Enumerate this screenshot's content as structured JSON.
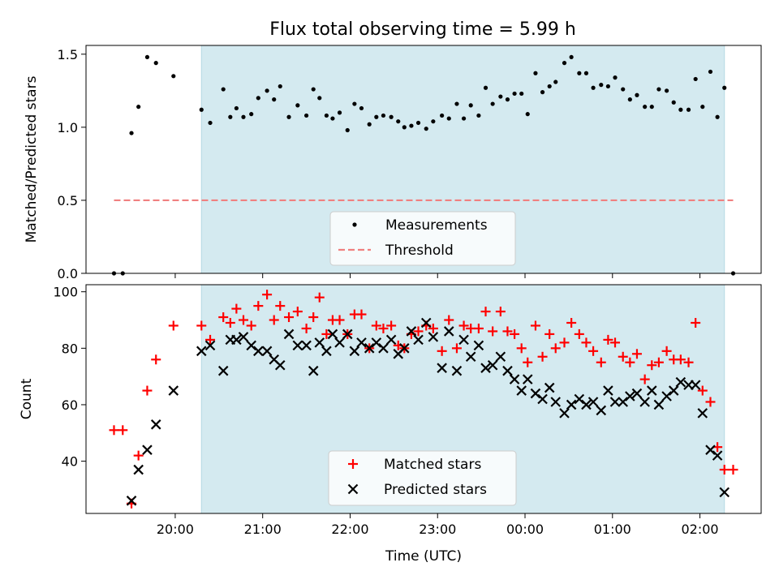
{
  "title": "Flux total observing time = 5.99 h",
  "chart_data": [
    {
      "type": "scatter",
      "ylabel": "Matched/Predicted stars",
      "xlabel": "",
      "x_units": "hours UTC, 24 = midnight",
      "xlim": [
        18.98,
        26.7
      ],
      "ylim": [
        0,
        1.56
      ],
      "yticks": [
        0.0,
        0.5,
        1.0,
        1.5
      ],
      "ytick_labels": [
        "0.0",
        "0.5",
        "1.0",
        "1.5"
      ],
      "shaded_x_range": [
        20.3,
        26.28
      ],
      "shade_color": "#d4eaf0",
      "legend": {
        "placement": "lower center",
        "entries": [
          "Measurements",
          "Threshold"
        ]
      },
      "series": [
        {
          "name": "Measurements",
          "marker": "dot",
          "color": "#000000",
          "x": [
            19.3,
            19.4,
            19.5,
            19.58,
            19.68,
            19.78,
            19.98,
            20.3,
            20.4,
            20.55,
            20.63,
            20.7,
            20.78,
            20.87,
            20.95,
            21.05,
            21.13,
            21.2,
            21.3,
            21.4,
            21.5,
            21.58,
            21.65,
            21.73,
            21.8,
            21.88,
            21.97,
            22.05,
            22.13,
            22.22,
            22.3,
            22.38,
            22.47,
            22.55,
            22.62,
            22.7,
            22.78,
            22.87,
            22.95,
            23.05,
            23.13,
            23.22,
            23.3,
            23.38,
            23.47,
            23.55,
            23.63,
            23.72,
            23.8,
            23.88,
            23.96,
            24.03,
            24.12,
            24.2,
            24.28,
            24.35,
            24.45,
            24.53,
            24.62,
            24.7,
            24.78,
            24.87,
            24.95,
            25.03,
            25.12,
            25.2,
            25.28,
            25.37,
            25.45,
            25.53,
            25.62,
            25.7,
            25.78,
            25.87,
            25.95,
            26.03,
            26.12,
            26.2,
            26.28,
            26.38
          ],
          "y": [
            0.0,
            0.0,
            0.96,
            1.14,
            1.48,
            1.44,
            1.35,
            1.12,
            1.03,
            1.26,
            1.07,
            1.13,
            1.07,
            1.09,
            1.2,
            1.25,
            1.19,
            1.28,
            1.07,
            1.15,
            1.08,
            1.26,
            1.2,
            1.08,
            1.06,
            1.1,
            0.98,
            1.16,
            1.13,
            1.02,
            1.07,
            1.08,
            1.07,
            1.04,
            1.0,
            1.01,
            1.03,
            0.99,
            1.04,
            1.08,
            1.06,
            1.16,
            1.06,
            1.15,
            1.08,
            1.27,
            1.16,
            1.21,
            1.19,
            1.23,
            1.23,
            1.09,
            1.37,
            1.24,
            1.28,
            1.31,
            1.44,
            1.48,
            1.37,
            1.37,
            1.27,
            1.29,
            1.28,
            1.34,
            1.26,
            1.19,
            1.22,
            1.14,
            1.14,
            1.26,
            1.25,
            1.17,
            1.12,
            1.12,
            1.33,
            1.14,
            1.38,
            1.07,
            1.27,
            0.0
          ]
        },
        {
          "name": "Threshold",
          "style": "dashed",
          "color": "#f08080",
          "x": [
            19.3,
            26.38
          ],
          "y": [
            0.5,
            0.5
          ]
        }
      ]
    },
    {
      "type": "scatter",
      "ylabel": "Count",
      "xlabel": "Time (UTC)",
      "x_units": "hours UTC, 24 = midnight",
      "xlim": [
        18.98,
        26.7
      ],
      "ylim": [
        21.5,
        102.5
      ],
      "yticks": [
        40,
        60,
        80,
        100
      ],
      "ytick_labels": [
        "40",
        "60",
        "80",
        "100"
      ],
      "xticks": [
        20,
        21,
        22,
        23,
        24,
        25,
        26
      ],
      "xtick_labels": [
        "20:00",
        "21:00",
        "22:00",
        "23:00",
        "00:00",
        "01:00",
        "02:00"
      ],
      "shaded_x_range": [
        20.3,
        26.28
      ],
      "shade_color": "#d4eaf0",
      "legend": {
        "placement": "lower center",
        "entries": [
          "Matched stars",
          "Predicted stars"
        ]
      },
      "series": [
        {
          "name": "Matched stars",
          "marker": "plus",
          "color": "#ff0000",
          "x": [
            19.3,
            19.4,
            19.5,
            19.58,
            19.68,
            19.78,
            19.98,
            20.3,
            20.4,
            20.55,
            20.63,
            20.7,
            20.78,
            20.87,
            20.95,
            21.05,
            21.13,
            21.2,
            21.3,
            21.4,
            21.5,
            21.58,
            21.65,
            21.73,
            21.8,
            21.88,
            21.97,
            22.05,
            22.13,
            22.22,
            22.3,
            22.38,
            22.47,
            22.55,
            22.62,
            22.7,
            22.78,
            22.87,
            22.95,
            23.05,
            23.13,
            23.22,
            23.3,
            23.38,
            23.47,
            23.55,
            23.63,
            23.72,
            23.8,
            23.88,
            23.96,
            24.03,
            24.12,
            24.2,
            24.28,
            24.35,
            24.45,
            24.53,
            24.62,
            24.7,
            24.78,
            24.87,
            24.95,
            25.03,
            25.12,
            25.2,
            25.28,
            25.37,
            25.45,
            25.53,
            25.62,
            25.7,
            25.78,
            25.87,
            25.95,
            26.03,
            26.12,
            26.2,
            26.28,
            26.38
          ],
          "y": [
            51,
            51,
            25,
            42,
            65,
            76,
            88,
            88,
            83,
            91,
            89,
            94,
            90,
            88,
            95,
            99,
            90,
            95,
            91,
            93,
            87,
            91,
            98,
            85,
            90,
            90,
            85,
            92,
            92,
            80,
            88,
            87,
            88,
            81,
            80,
            85,
            86,
            88,
            87,
            79,
            90,
            80,
            88,
            87,
            87,
            93,
            86,
            93,
            86,
            85,
            80,
            75,
            88,
            77,
            85,
            80,
            82,
            89,
            85,
            82,
            79,
            75,
            83,
            82,
            77,
            75,
            78,
            69,
            74,
            75,
            79,
            76,
            76,
            75,
            89,
            65,
            61,
            45,
            37,
            37
          ]
        },
        {
          "name": "Predicted stars",
          "marker": "x",
          "color": "#000000",
          "x": [
            19.5,
            19.58,
            19.68,
            19.78,
            19.98,
            20.3,
            20.4,
            20.55,
            20.63,
            20.7,
            20.78,
            20.87,
            20.95,
            21.05,
            21.13,
            21.2,
            21.3,
            21.4,
            21.5,
            21.58,
            21.65,
            21.73,
            21.8,
            21.88,
            21.97,
            22.05,
            22.13,
            22.22,
            22.3,
            22.38,
            22.47,
            22.55,
            22.62,
            22.7,
            22.78,
            22.87,
            22.95,
            23.05,
            23.13,
            23.22,
            23.3,
            23.38,
            23.47,
            23.55,
            23.63,
            23.72,
            23.8,
            23.88,
            23.96,
            24.03,
            24.12,
            24.2,
            24.28,
            24.35,
            24.45,
            24.53,
            24.62,
            24.7,
            24.78,
            24.87,
            24.95,
            25.03,
            25.12,
            25.2,
            25.28,
            25.37,
            25.45,
            25.53,
            25.62,
            25.7,
            25.78,
            25.87,
            25.95,
            26.03,
            26.12,
            26.2,
            26.28
          ],
          "y": [
            26,
            37,
            44,
            53,
            65,
            79,
            81,
            72,
            83,
            83,
            84,
            81,
            79,
            79,
            76,
            74,
            85,
            81,
            81,
            72,
            82,
            79,
            85,
            82,
            85,
            79,
            82,
            80,
            82,
            80,
            83,
            78,
            80,
            86,
            83,
            89,
            84,
            73,
            86,
            72,
            83,
            77,
            81,
            73,
            74,
            77,
            72,
            69,
            65,
            69,
            64,
            62,
            66,
            61,
            57,
            60,
            62,
            60,
            61,
            58,
            65,
            61,
            61,
            63,
            64,
            61,
            65,
            60,
            63,
            65,
            68,
            67,
            67,
            57,
            44,
            42,
            29
          ]
        }
      ]
    }
  ]
}
